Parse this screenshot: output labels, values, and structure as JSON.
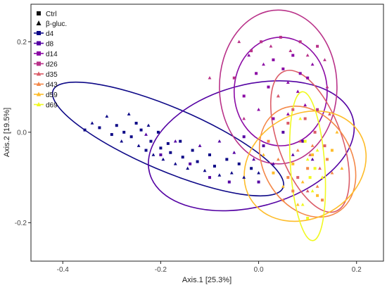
{
  "chart_data": {
    "type": "scatter",
    "xlabel": "Axis.1   [25.3%]",
    "ylabel": "Axis.2   [19.5%]",
    "xlim": [
      -0.465,
      0.255
    ],
    "ylim": [
      -0.285,
      0.283
    ],
    "xticks": [
      -0.4,
      -0.2,
      0.0,
      0.2
    ],
    "xtick_labels": [
      "-0.4",
      "-0.2",
      "0.0",
      "0.2"
    ],
    "yticks": [
      -0.2,
      0.0,
      0.2
    ],
    "ytick_labels": [
      "-0.2",
      "0.0",
      "0.2"
    ],
    "grid": false,
    "legend_position": "top-left",
    "shape_legend": [
      {
        "label": "Ctrl",
        "shape": "square"
      },
      {
        "label": "β-gluc.",
        "shape": "triangle"
      }
    ],
    "series": [
      {
        "name": "d4",
        "color": "#0d0887",
        "ellipse": {
          "cx": -0.185,
          "cy": -0.015,
          "rx": 0.255,
          "ry": 0.07,
          "angle_deg": -23
        },
        "points": [
          {
            "x": -0.355,
            "y": 0.005,
            "s": "sq"
          },
          {
            "x": -0.34,
            "y": 0.02,
            "s": "tri"
          },
          {
            "x": -0.325,
            "y": 0.01,
            "s": "sq"
          },
          {
            "x": -0.31,
            "y": 0.035,
            "s": "tri"
          },
          {
            "x": -0.3,
            "y": -0.005,
            "s": "sq"
          },
          {
            "x": -0.29,
            "y": 0.015,
            "s": "sq"
          },
          {
            "x": -0.28,
            "y": -0.02,
            "s": "tri"
          },
          {
            "x": -0.275,
            "y": 0.0,
            "s": "sq"
          },
          {
            "x": -0.265,
            "y": 0.04,
            "s": "tri"
          },
          {
            "x": -0.26,
            "y": -0.01,
            "s": "sq"
          },
          {
            "x": -0.25,
            "y": 0.02,
            "s": "sq"
          },
          {
            "x": -0.245,
            "y": -0.03,
            "s": "tri"
          },
          {
            "x": -0.24,
            "y": 0.005,
            "s": "sq"
          },
          {
            "x": -0.23,
            "y": -0.04,
            "s": "sq"
          },
          {
            "x": -0.225,
            "y": 0.015,
            "s": "tri"
          },
          {
            "x": -0.22,
            "y": -0.02,
            "s": "sq"
          },
          {
            "x": -0.215,
            "y": -0.05,
            "s": "tri"
          },
          {
            "x": -0.205,
            "y": 0.0,
            "s": "sq"
          },
          {
            "x": -0.2,
            "y": -0.035,
            "s": "sq"
          },
          {
            "x": -0.195,
            "y": -0.06,
            "s": "tri"
          },
          {
            "x": -0.185,
            "y": -0.025,
            "s": "sq"
          },
          {
            "x": -0.18,
            "y": -0.045,
            "s": "sq"
          },
          {
            "x": -0.17,
            "y": -0.07,
            "s": "tri"
          },
          {
            "x": -0.16,
            "y": -0.02,
            "s": "sq"
          },
          {
            "x": -0.155,
            "y": -0.055,
            "s": "sq"
          },
          {
            "x": -0.145,
            "y": -0.08,
            "s": "tri"
          },
          {
            "x": -0.135,
            "y": -0.04,
            "s": "sq"
          },
          {
            "x": -0.125,
            "y": -0.065,
            "s": "sq"
          },
          {
            "x": -0.11,
            "y": -0.085,
            "s": "tri"
          },
          {
            "x": -0.1,
            "y": -0.05,
            "s": "sq"
          },
          {
            "x": -0.09,
            "y": -0.075,
            "s": "sq"
          },
          {
            "x": -0.08,
            "y": -0.095,
            "s": "tri"
          },
          {
            "x": -0.065,
            "y": -0.06,
            "s": "sq"
          },
          {
            "x": -0.055,
            "y": -0.09,
            "s": "tri"
          },
          {
            "x": -0.04,
            "y": -0.07,
            "s": "sq"
          },
          {
            "x": -0.03,
            "y": -0.1,
            "s": "tri"
          },
          {
            "x": -0.015,
            "y": -0.08,
            "s": "sq"
          },
          {
            "x": 0.0,
            "y": -0.09,
            "s": "tri"
          }
        ]
      },
      {
        "name": "d8",
        "color": "#5402a3",
        "ellipse": {
          "cx": -0.015,
          "cy": -0.03,
          "rx": 0.215,
          "ry": 0.135,
          "angle_deg": 15
        },
        "points": [
          {
            "x": -0.23,
            "y": -0.005,
            "s": "tri"
          },
          {
            "x": -0.2,
            "y": -0.05,
            "s": "sq"
          },
          {
            "x": -0.17,
            "y": -0.02,
            "s": "tri"
          },
          {
            "x": -0.14,
            "y": -0.07,
            "s": "sq"
          },
          {
            "x": -0.12,
            "y": -0.03,
            "s": "tri"
          },
          {
            "x": -0.1,
            "y": -0.1,
            "s": "sq"
          },
          {
            "x": -0.08,
            "y": -0.02,
            "s": "tri"
          },
          {
            "x": -0.06,
            "y": -0.11,
            "s": "sq"
          },
          {
            "x": -0.05,
            "y": -0.045,
            "s": "tri"
          },
          {
            "x": -0.03,
            "y": -0.01,
            "s": "sq"
          },
          {
            "x": -0.01,
            "y": -0.06,
            "s": "tri"
          },
          {
            "x": 0.01,
            "y": -0.03,
            "s": "sq"
          },
          {
            "x": 0.03,
            "y": -0.07,
            "s": "tri"
          },
          {
            "x": 0.05,
            "y": 0.0,
            "s": "sq"
          },
          {
            "x": 0.07,
            "y": -0.05,
            "s": "tri"
          },
          {
            "x": 0.09,
            "y": -0.02,
            "s": "sq"
          },
          {
            "x": 0.11,
            "y": -0.06,
            "s": "tri"
          },
          {
            "x": 0.0,
            "y": -0.11,
            "s": "sq"
          }
        ]
      },
      {
        "name": "d14",
        "color": "#8b0aa5",
        "ellipse": {
          "cx": 0.045,
          "cy": 0.09,
          "rx": 0.095,
          "ry": 0.12,
          "angle_deg": 0
        },
        "points": [
          {
            "x": -0.02,
            "y": 0.17,
            "s": "tri"
          },
          {
            "x": -0.005,
            "y": 0.13,
            "s": "sq"
          },
          {
            "x": 0.01,
            "y": 0.15,
            "s": "tri"
          },
          {
            "x": 0.02,
            "y": 0.1,
            "s": "sq"
          },
          {
            "x": 0.03,
            "y": 0.16,
            "s": "sq"
          },
          {
            "x": 0.04,
            "y": 0.08,
            "s": "tri"
          },
          {
            "x": 0.05,
            "y": 0.14,
            "s": "sq"
          },
          {
            "x": 0.06,
            "y": 0.11,
            "s": "tri"
          },
          {
            "x": 0.07,
            "y": 0.17,
            "s": "sq"
          },
          {
            "x": 0.08,
            "y": 0.09,
            "s": "tri"
          },
          {
            "x": 0.085,
            "y": 0.13,
            "s": "sq"
          },
          {
            "x": 0.095,
            "y": 0.06,
            "s": "tri"
          },
          {
            "x": 0.1,
            "y": 0.12,
            "s": "sq"
          },
          {
            "x": 0.0,
            "y": 0.05,
            "s": "tri"
          },
          {
            "x": 0.03,
            "y": 0.03,
            "s": "sq"
          },
          {
            "x": -0.03,
            "y": 0.08,
            "s": "sq"
          },
          {
            "x": 0.06,
            "y": 0.04,
            "s": "tri"
          },
          {
            "x": 0.11,
            "y": 0.15,
            "s": "tri"
          }
        ]
      },
      {
        "name": "d26",
        "color": "#b93289",
        "ellipse": {
          "cx": 0.04,
          "cy": 0.1,
          "rx": 0.12,
          "ry": 0.17,
          "angle_deg": 0
        },
        "points": [
          {
            "x": -0.04,
            "y": 0.2,
            "s": "tri"
          },
          {
            "x": -0.015,
            "y": 0.18,
            "s": "sq"
          },
          {
            "x": 0.005,
            "y": 0.2,
            "s": "sq"
          },
          {
            "x": 0.025,
            "y": 0.19,
            "s": "tri"
          },
          {
            "x": 0.045,
            "y": 0.21,
            "s": "sq"
          },
          {
            "x": 0.065,
            "y": 0.18,
            "s": "tri"
          },
          {
            "x": 0.085,
            "y": 0.2,
            "s": "sq"
          },
          {
            "x": 0.1,
            "y": 0.17,
            "s": "tri"
          },
          {
            "x": 0.12,
            "y": 0.19,
            "s": "sq"
          },
          {
            "x": 0.135,
            "y": 0.16,
            "s": "tri"
          },
          {
            "x": -0.05,
            "y": 0.12,
            "s": "sq"
          },
          {
            "x": -0.03,
            "y": 0.03,
            "s": "tri"
          },
          {
            "x": 0.12,
            "y": 0.05,
            "s": "sq"
          },
          {
            "x": 0.14,
            "y": 0.1,
            "s": "tri"
          },
          {
            "x": -0.1,
            "y": 0.12,
            "s": "tri"
          }
        ]
      },
      {
        "name": "d35",
        "color": "#db5c68",
        "ellipse": {
          "cx": 0.105,
          "cy": -0.02,
          "rx": 0.065,
          "ry": 0.165,
          "angle_deg": 20
        },
        "points": [
          {
            "x": 0.04,
            "y": 0.08,
            "s": "tri"
          },
          {
            "x": 0.06,
            "y": 0.02,
            "s": "sq"
          },
          {
            "x": 0.07,
            "y": 0.05,
            "s": "sq"
          },
          {
            "x": 0.085,
            "y": -0.02,
            "s": "tri"
          },
          {
            "x": 0.095,
            "y": 0.03,
            "s": "sq"
          },
          {
            "x": 0.105,
            "y": -0.05,
            "s": "tri"
          },
          {
            "x": 0.115,
            "y": 0.0,
            "s": "sq"
          },
          {
            "x": 0.125,
            "y": -0.08,
            "s": "tri"
          },
          {
            "x": 0.135,
            "y": -0.03,
            "s": "sq"
          },
          {
            "x": 0.145,
            "y": 0.04,
            "s": "tri"
          },
          {
            "x": 0.08,
            "y": -0.1,
            "s": "sq"
          },
          {
            "x": 0.1,
            "y": -0.13,
            "s": "tri"
          }
        ]
      },
      {
        "name": "d43",
        "color": "#f48849",
        "ellipse": {
          "cx": 0.1,
          "cy": -0.065,
          "rx": 0.09,
          "ry": 0.13,
          "angle_deg": 30
        },
        "points": [
          {
            "x": 0.02,
            "y": -0.02,
            "s": "sq"
          },
          {
            "x": 0.04,
            "y": -0.06,
            "s": "tri"
          },
          {
            "x": 0.06,
            "y": -0.1,
            "s": "sq"
          },
          {
            "x": 0.08,
            "y": -0.04,
            "s": "tri"
          },
          {
            "x": 0.1,
            "y": -0.08,
            "s": "sq"
          },
          {
            "x": 0.12,
            "y": -0.12,
            "s": "tri"
          },
          {
            "x": 0.14,
            "y": -0.06,
            "s": "sq"
          },
          {
            "x": 0.15,
            "y": -0.09,
            "s": "tri"
          },
          {
            "x": 0.07,
            "y": -0.13,
            "s": "sq"
          },
          {
            "x": 0.11,
            "y": -0.03,
            "s": "tri"
          },
          {
            "x": 0.05,
            "y": -0.15,
            "s": "tri"
          },
          {
            "x": 0.13,
            "y": -0.15,
            "s": "sq"
          }
        ]
      },
      {
        "name": "d59",
        "color": "#febc2a",
        "ellipse": {
          "cx": 0.095,
          "cy": -0.075,
          "rx": 0.13,
          "ry": 0.115,
          "angle_deg": 30
        },
        "points": [
          {
            "x": 0.01,
            "y": -0.05,
            "s": "tri"
          },
          {
            "x": 0.03,
            "y": -0.09,
            "s": "sq"
          },
          {
            "x": 0.05,
            "y": -0.12,
            "s": "tri"
          },
          {
            "x": 0.07,
            "y": -0.07,
            "s": "sq"
          },
          {
            "x": 0.09,
            "y": -0.11,
            "s": "tri"
          },
          {
            "x": 0.11,
            "y": -0.05,
            "s": "sq"
          },
          {
            "x": 0.13,
            "y": -0.1,
            "s": "tri"
          },
          {
            "x": 0.15,
            "y": -0.04,
            "s": "sq"
          },
          {
            "x": 0.17,
            "y": -0.08,
            "s": "tri"
          },
          {
            "x": 0.12,
            "y": -0.14,
            "s": "sq"
          },
          {
            "x": 0.08,
            "y": -0.16,
            "s": "tri"
          },
          {
            "x": 0.16,
            "y": 0.0,
            "s": "tri"
          }
        ]
      },
      {
        "name": "d69",
        "color": "#f0f921",
        "ellipse": {
          "cx": 0.1,
          "cy": -0.075,
          "rx": 0.035,
          "ry": 0.165,
          "angle_deg": 4
        },
        "points": [
          {
            "x": 0.085,
            "y": 0.03,
            "s": "tri"
          },
          {
            "x": 0.095,
            "y": -0.02,
            "s": "sq"
          },
          {
            "x": 0.1,
            "y": -0.06,
            "s": "tri"
          },
          {
            "x": 0.105,
            "y": -0.1,
            "s": "sq"
          },
          {
            "x": 0.11,
            "y": -0.13,
            "s": "tri"
          },
          {
            "x": 0.115,
            "y": -0.08,
            "s": "sq"
          },
          {
            "x": 0.09,
            "y": -0.16,
            "s": "tri"
          },
          {
            "x": 0.12,
            "y": -0.04,
            "s": "tri"
          },
          {
            "x": 0.1,
            "y": -0.19,
            "s": "sq"
          },
          {
            "x": 0.13,
            "y": -0.1,
            "s": "tri"
          }
        ]
      }
    ]
  }
}
